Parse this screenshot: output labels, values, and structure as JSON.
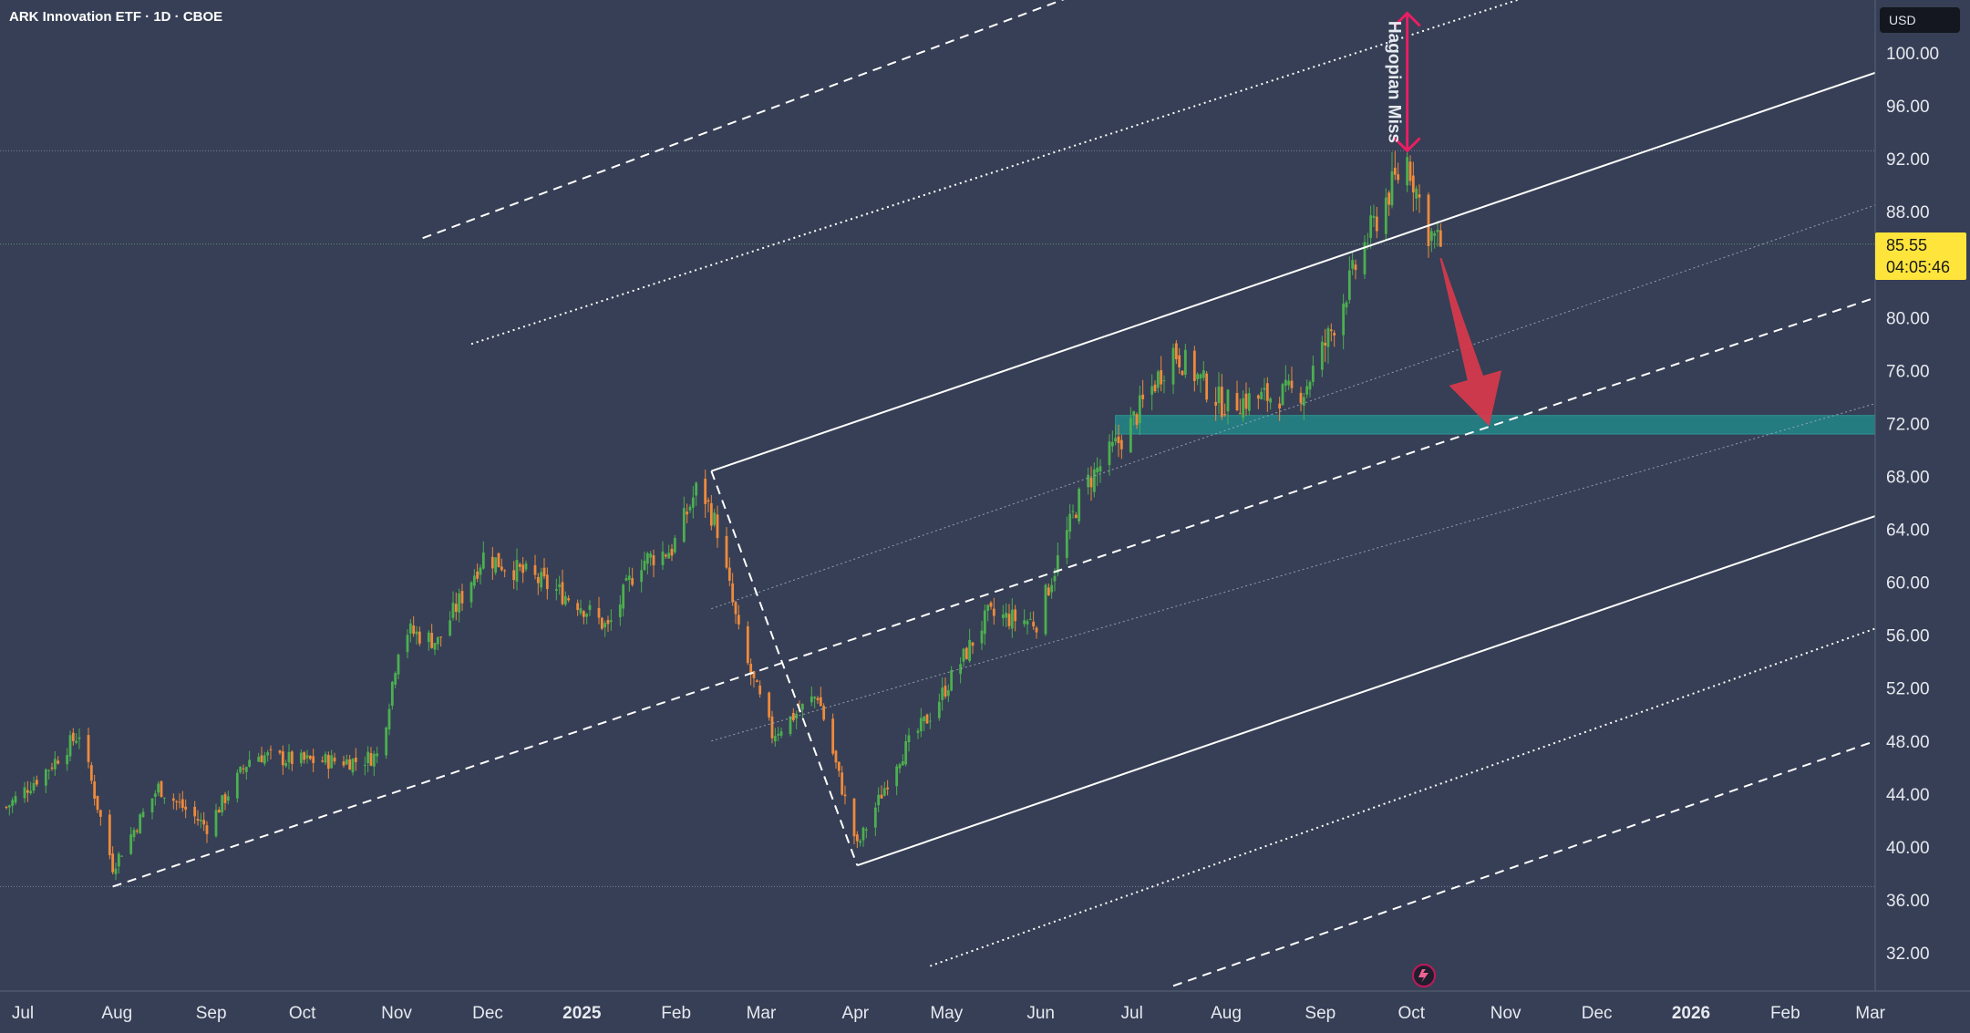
{
  "header": {
    "title": "ARK Innovation ETF · 1D · CBOE",
    "currency": "USD"
  },
  "last_price": {
    "value": "85.55",
    "countdown": "04:05:46"
  },
  "annotation": {
    "label": "Hagopian Miss"
  },
  "colors": {
    "background": "#363f55",
    "up": "#4caf50",
    "down": "#ef8a3c",
    "arrow": "#d9384c",
    "hagopian": "#e91e63",
    "zone": "#1f8f8f",
    "price_tag": "#ffe53b"
  },
  "chart_data": {
    "type": "candlestick",
    "title": "ARK Innovation ETF · 1D · CBOE",
    "y_axis": {
      "ticks": [
        32,
        36,
        40,
        44,
        48,
        52,
        56,
        60,
        64,
        68,
        72,
        76,
        80,
        84,
        88,
        92,
        96,
        100
      ],
      "tick_labels": [
        "32.00",
        "36.00",
        "40.00",
        "44.00",
        "48.00",
        "52.00",
        "56.00",
        "60.00",
        "64.00",
        "68.00",
        "72.00",
        "76.00",
        "80.00",
        "84.00",
        "88.00",
        "92.00",
        "96.00",
        "100.00"
      ],
      "range": [
        29.5,
        103
      ],
      "position": "right"
    },
    "x_axis": {
      "labels": [
        "Jul",
        "Aug",
        "Sep",
        "Oct",
        "Nov",
        "Dec",
        "2025",
        "Feb",
        "Mar",
        "Apr",
        "May",
        "Jun",
        "Jul",
        "Aug",
        "Sep",
        "Oct",
        "Nov",
        "Dec",
        "2026",
        "Feb",
        "Mar"
      ],
      "bold_labels": [
        "2025",
        "2026"
      ],
      "range": [
        "2024-07-01",
        "2026-03-31"
      ]
    },
    "price_path": [
      [
        "2024-07-01",
        43.0
      ],
      [
        "2024-07-15",
        46.0
      ],
      [
        "2024-07-25",
        48.6
      ],
      [
        "2024-08-05",
        38.5
      ],
      [
        "2024-08-20",
        44.5
      ],
      [
        "2024-09-05",
        41.5
      ],
      [
        "2024-09-20",
        47.0
      ],
      [
        "2024-10-05",
        46.5
      ],
      [
        "2024-10-25",
        46.5
      ],
      [
        "2024-11-01",
        47.0
      ],
      [
        "2024-11-08",
        56.5
      ],
      [
        "2024-11-20",
        55.5
      ],
      [
        "2024-12-05",
        62.0
      ],
      [
        "2024-12-20",
        60.5
      ],
      [
        "2025-01-05",
        58.5
      ],
      [
        "2025-01-15",
        56.5
      ],
      [
        "2025-01-25",
        61.5
      ],
      [
        "2025-02-05",
        62.5
      ],
      [
        "2025-02-14",
        67.5
      ],
      [
        "2025-02-20",
        64.0
      ],
      [
        "2025-02-28",
        55.0
      ],
      [
        "2025-03-10",
        48.5
      ],
      [
        "2025-03-25",
        51.5
      ],
      [
        "2025-04-07",
        40.0
      ],
      [
        "2025-04-20",
        46.5
      ],
      [
        "2025-05-01",
        50.0
      ],
      [
        "2025-05-20",
        57.5
      ],
      [
        "2025-06-05",
        57.0
      ],
      [
        "2025-06-20",
        67.0
      ],
      [
        "2025-07-05",
        71.5
      ],
      [
        "2025-07-20",
        77.5
      ],
      [
        "2025-08-05",
        73.5
      ],
      [
        "2025-08-20",
        74.0
      ],
      [
        "2025-09-01",
        74.5
      ],
      [
        "2025-09-10",
        79.0
      ],
      [
        "2025-09-20",
        85.0
      ],
      [
        "2025-09-28",
        89.0
      ],
      [
        "2025-10-05",
        92.0
      ],
      [
        "2025-10-12",
        86.5
      ],
      [
        "2025-10-16",
        85.55
      ]
    ],
    "last_price": 85.55,
    "reference_levels": [
      92.6,
      85.55,
      37.0
    ],
    "pitchfork": {
      "pivots": [
        [
          "2024-08-05",
          37.0
        ],
        [
          "2025-02-18",
          68.4
        ],
        [
          "2025-04-07",
          38.6
        ]
      ],
      "lines": [
        {
          "name": "upper-outer",
          "style": "dashed",
          "p1": [
            "2024-11-15",
            86.0
          ],
          "p2": [
            "2025-10-20",
            115.0
          ]
        },
        {
          "name": "upper-mid",
          "style": "dotted",
          "p1": [
            "2024-12-01",
            78.0
          ],
          "p2": [
            "2025-12-20",
            107.0
          ]
        },
        {
          "name": "upper-tine",
          "style": "solid",
          "p1": [
            "2025-02-18",
            68.4
          ],
          "p2": [
            "2026-03-31",
            98.5
          ]
        },
        {
          "name": "upper-quarter",
          "style": "faint-dotted",
          "p1": [
            "2025-02-18",
            58.0
          ],
          "p2": [
            "2026-03-31",
            88.5
          ]
        },
        {
          "name": "median",
          "style": "dashed",
          "p1": [
            "2024-08-05",
            37.0
          ],
          "p2": [
            "2026-03-31",
            81.5
          ]
        },
        {
          "name": "lower-quarter",
          "style": "faint-dotted",
          "p1": [
            "2025-02-18",
            48.0
          ],
          "p2": [
            "2026-03-31",
            73.5
          ]
        },
        {
          "name": "lower-tine",
          "style": "solid",
          "p1": [
            "2025-04-07",
            38.6
          ],
          "p2": [
            "2026-03-31",
            65.0
          ]
        },
        {
          "name": "lower-mid",
          "style": "dotted",
          "p1": [
            "2025-05-01",
            31.0
          ],
          "p2": [
            "2026-03-31",
            56.5
          ]
        },
        {
          "name": "lower-outer",
          "style": "dashed",
          "p1": [
            "2025-07-20",
            29.5
          ],
          "p2": [
            "2026-03-31",
            48.0
          ]
        },
        {
          "name": "handle",
          "style": "dashed",
          "p1": [
            "2025-02-18",
            68.4
          ],
          "p2": [
            "2025-04-07",
            38.6
          ]
        }
      ]
    },
    "support_zone": {
      "from": "2025-07-01",
      "to": "2026-03-31",
      "low": 71.2,
      "high": 72.6
    },
    "hagopian_arrow": {
      "date": "2025-10-05",
      "from": 92.6,
      "to": 103.0
    },
    "forecast_arrow": {
      "from": [
        "2025-10-16",
        84.5
      ],
      "to": [
        "2025-11-01",
        71.8
      ]
    }
  }
}
